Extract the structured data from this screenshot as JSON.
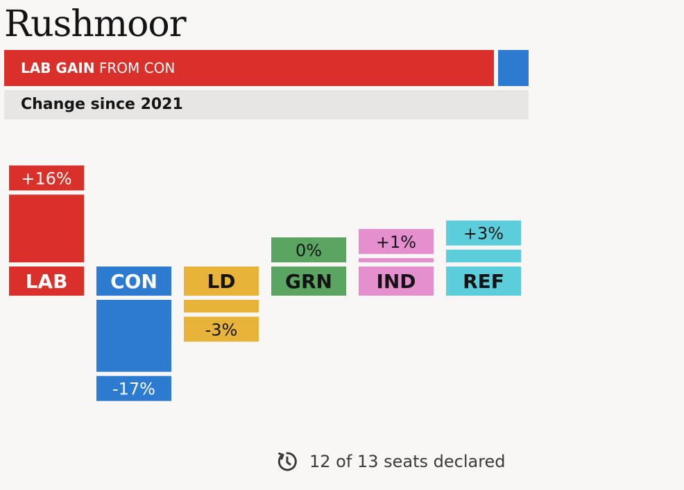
{
  "title": "Rushmoor",
  "banner": {
    "winner": "LAB GAIN",
    "rest": " FROM CON",
    "winner_color": "#d9302a",
    "loser_color": "#2d7ad1"
  },
  "subtitle": "Change since 2021",
  "chart_data": {
    "type": "bar",
    "title": "Change since 2021",
    "categories": [
      "LAB",
      "CON",
      "LD",
      "GRN",
      "IND",
      "REF"
    ],
    "values": [
      16,
      -17,
      -3,
      0,
      1,
      3
    ],
    "value_labels": [
      "+16%",
      "-17%",
      "-3%",
      "0%",
      "+1%",
      "+3%"
    ],
    "colors": [
      "#d9302a",
      "#2d7ad1",
      "#e8b339",
      "#5aa562",
      "#e58fcf",
      "#5ccedb"
    ],
    "label_text_colors": [
      "#ffffff",
      "#ffffff",
      "#141414",
      "#141414",
      "#141414",
      "#141414"
    ],
    "unit": "%",
    "grid": false,
    "legend": "none"
  },
  "footer": {
    "text": "12 of 13 seats declared",
    "icon": "clock-history-icon"
  }
}
